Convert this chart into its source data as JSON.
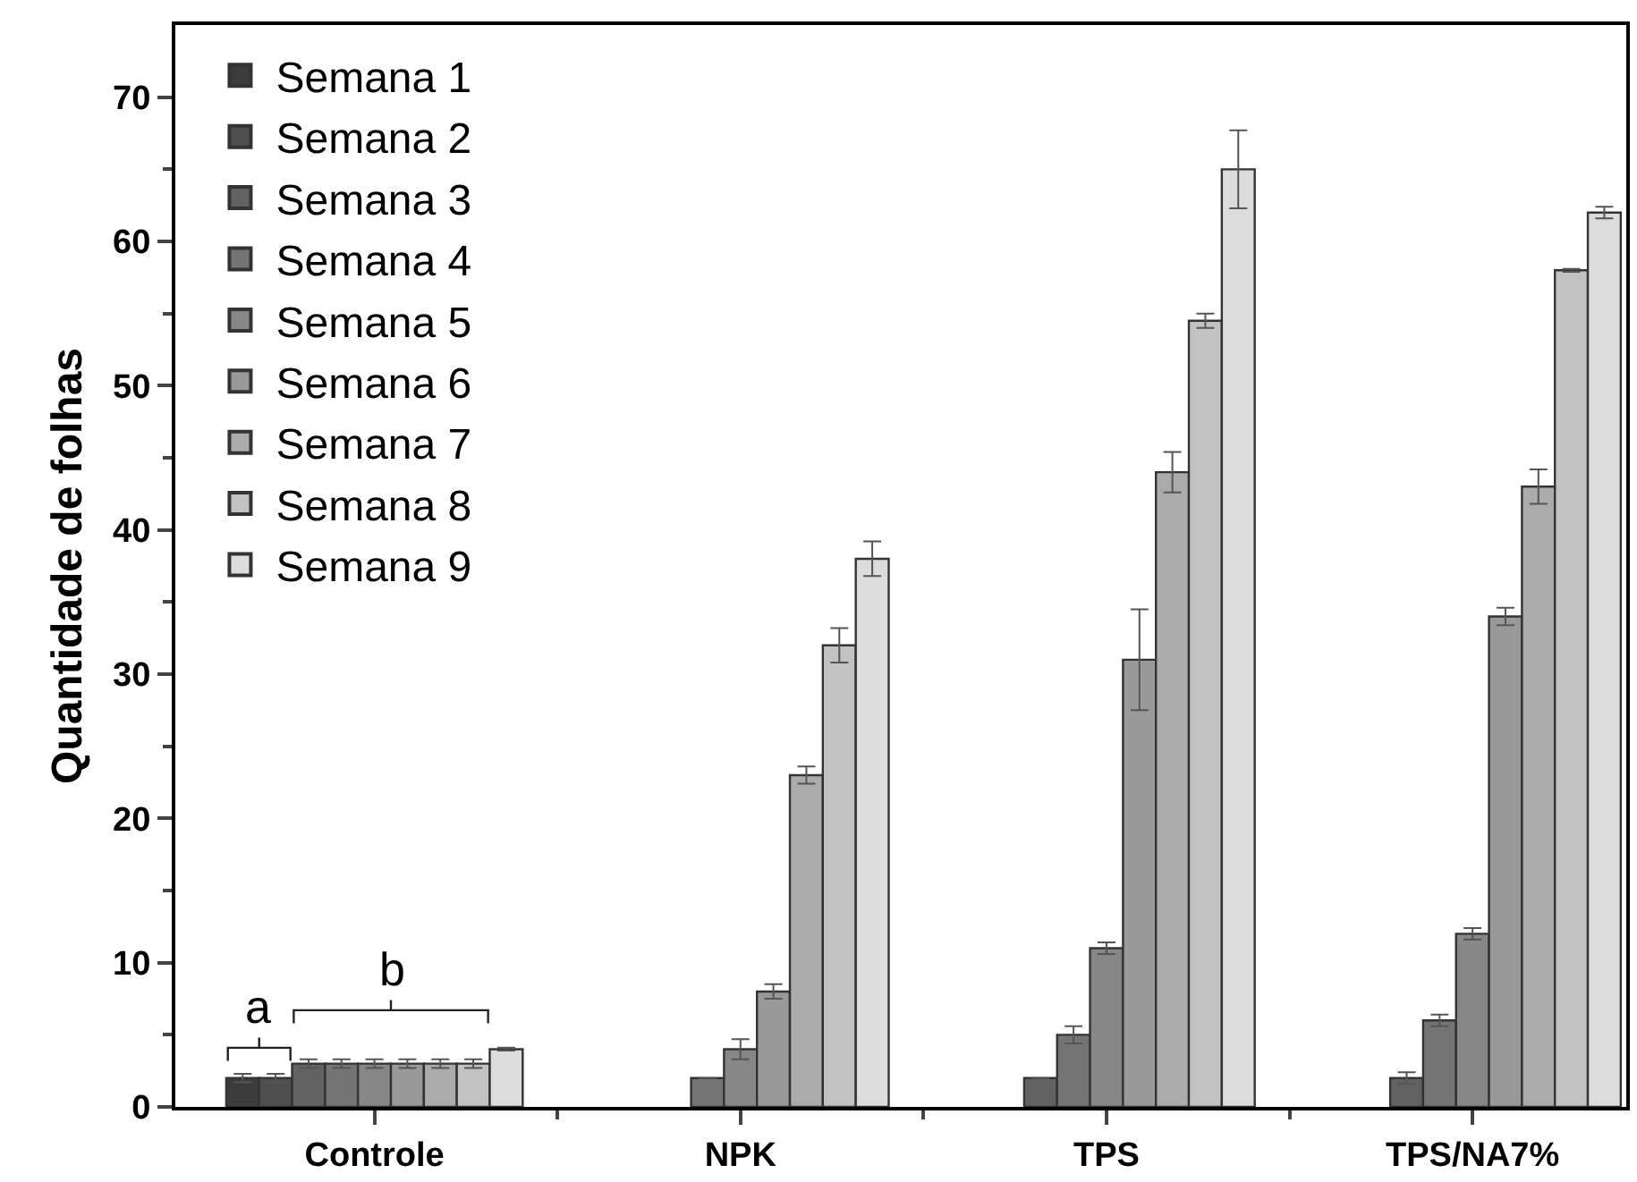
{
  "chart_data": {
    "type": "bar",
    "ylabel": "Quantidade de folhas",
    "categories": [
      "Controle",
      "NPK",
      "TPS",
      "TPS/NA7%"
    ],
    "series": [
      {
        "name": "Semana 1",
        "color": "#3c3c3c",
        "values": [
          2,
          null,
          null,
          null
        ],
        "errors": [
          0.3,
          null,
          null,
          null
        ]
      },
      {
        "name": "Semana 2",
        "color": "#4f4f4f",
        "values": [
          2,
          null,
          null,
          null
        ],
        "errors": [
          0.3,
          null,
          null,
          null
        ]
      },
      {
        "name": "Semana 3",
        "color": "#626262",
        "values": [
          3,
          null,
          2,
          2
        ],
        "errors": [
          0.3,
          null,
          null,
          0.4
        ]
      },
      {
        "name": "Semana 4",
        "color": "#747474",
        "values": [
          3,
          2,
          5,
          6
        ],
        "errors": [
          0.3,
          null,
          0.6,
          0.4
        ]
      },
      {
        "name": "Semana 5",
        "color": "#878787",
        "values": [
          3,
          4,
          11,
          12
        ],
        "errors": [
          0.3,
          0.7,
          0.4,
          0.4
        ]
      },
      {
        "name": "Semana 6",
        "color": "#999999",
        "values": [
          3,
          8,
          31,
          34
        ],
        "errors": [
          0.3,
          0.5,
          3.5,
          0.6
        ]
      },
      {
        "name": "Semana 7",
        "color": "#ababab",
        "values": [
          3,
          23,
          44,
          43
        ],
        "errors": [
          0.3,
          0.6,
          1.4,
          1.2
        ]
      },
      {
        "name": "Semana 8",
        "color": "#c2c2c2",
        "values": [
          3,
          32,
          54.5,
          58
        ],
        "errors": [
          0.3,
          1.2,
          0.5,
          0.1
        ]
      },
      {
        "name": "Semana 9",
        "color": "#dcdcdc",
        "values": [
          4,
          38,
          65,
          62
        ],
        "errors": [
          0.1,
          1.2,
          2.7,
          0.4
        ]
      }
    ],
    "ylim": [
      0,
      75
    ],
    "yticks": [
      0,
      10,
      20,
      30,
      40,
      50,
      60,
      70
    ],
    "annotations": [
      "a",
      "b"
    ],
    "legend": "top left"
  }
}
